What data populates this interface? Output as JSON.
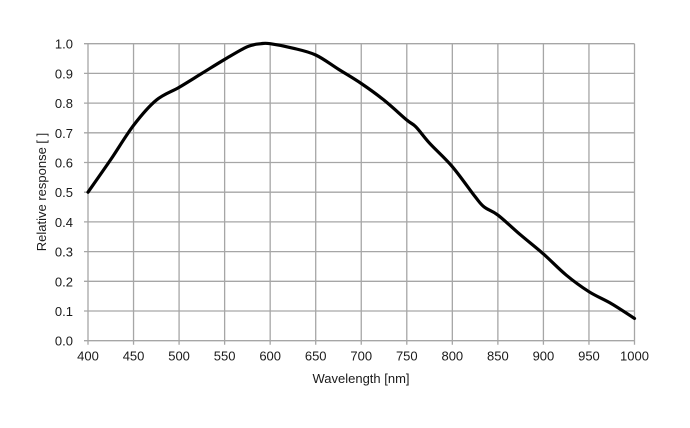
{
  "chart_data": {
    "type": "line",
    "title": "",
    "xlabel": "Wavelength [nm]",
    "ylabel": "Relative response [ ]",
    "xlim": [
      400,
      1000
    ],
    "ylim": [
      0.0,
      1.0
    ],
    "xticks": [
      "400",
      "450",
      "500",
      "550",
      "600",
      "650",
      "700",
      "750",
      "800",
      "850",
      "900",
      "950",
      "1000"
    ],
    "yticks": [
      "0.0",
      "0.1",
      "0.2",
      "0.3",
      "0.4",
      "0.5",
      "0.6",
      "0.7",
      "0.8",
      "0.9",
      "1.0"
    ],
    "grid": true,
    "legend": "none",
    "colors": {
      "line": "#000000",
      "grid": "#a6a6a6"
    },
    "series": [
      {
        "x": [
          400,
          425,
          450,
          475,
          500,
          525,
          550,
          575,
          590,
          600,
          625,
          650,
          675,
          700,
          725,
          750,
          760,
          775,
          800,
          825,
          835,
          850,
          875,
          900,
          925,
          950,
          975,
          1000
        ],
        "y": [
          0.5,
          0.61,
          0.725,
          0.81,
          0.853,
          0.9,
          0.947,
          0.99,
          1.0,
          1.0,
          0.985,
          0.962,
          0.914,
          0.866,
          0.81,
          0.743,
          0.72,
          0.665,
          0.586,
          0.485,
          0.45,
          0.423,
          0.356,
          0.292,
          0.221,
          0.165,
          0.124,
          0.075
        ]
      }
    ]
  }
}
